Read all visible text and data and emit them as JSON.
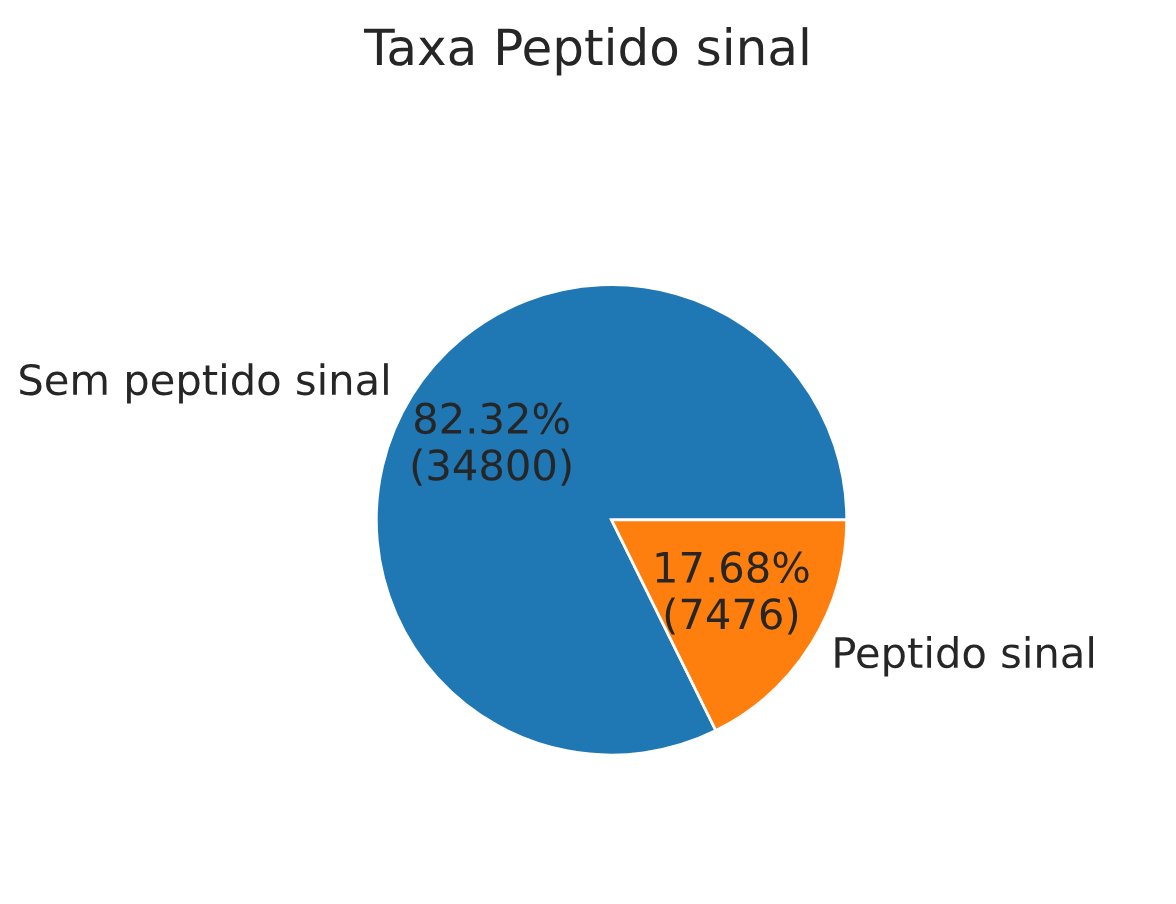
{
  "chart_data": {
    "type": "pie",
    "title": "Taxa Peptido sinal",
    "categories": [
      "Sem peptido sinal",
      "Peptido sinal"
    ],
    "values": [
      34800,
      7476
    ],
    "colors": [
      "#1f77b4",
      "#ff7f0e"
    ],
    "value_labels": [
      "82.32%\n(34800)",
      "17.68%\n(7476)"
    ]
  }
}
